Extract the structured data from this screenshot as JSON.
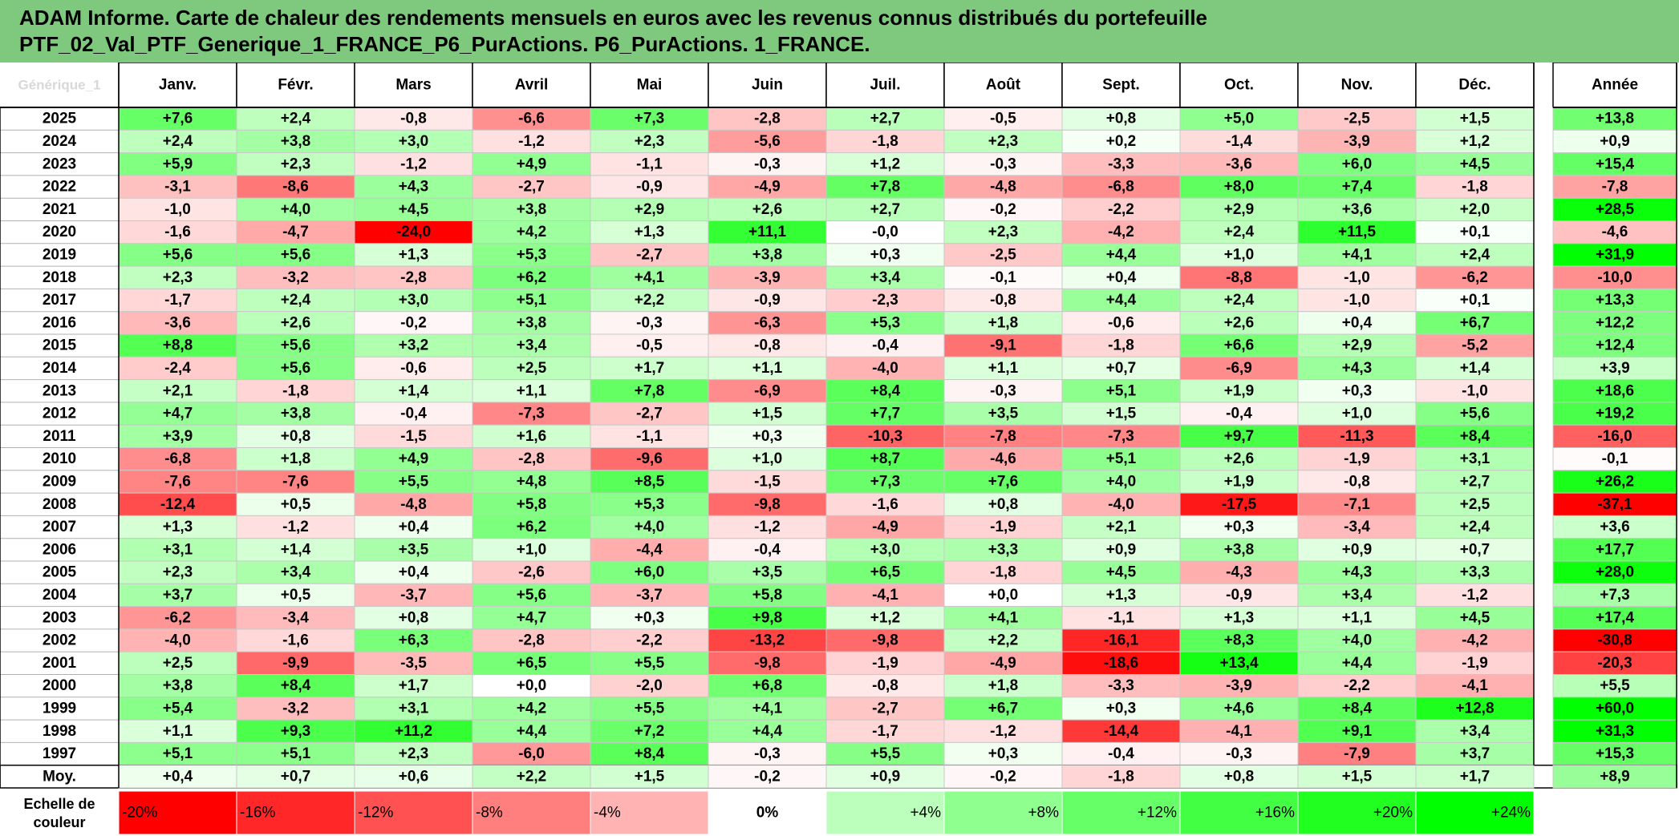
{
  "title_line1": "ADAM Informe. Carte de chaleur des rendements mensuels en euros avec les revenus connus distribués du portefeuille",
  "title_line2": "PTF_02_Val_PTF_Generique_1_FRANCE_P6_PurActions. P6_PurActions. 1_FRANCE.",
  "chart_data": {
    "type": "heatmap",
    "corner_label": "Générique_1",
    "columns": [
      "Janv.",
      "Févr.",
      "Mars",
      "Avril",
      "Mai",
      "Juin",
      "Juil.",
      "Août",
      "Sept.",
      "Oct.",
      "Nov.",
      "Déc."
    ],
    "total_column": "Année",
    "rows": [
      {
        "year": "2025",
        "values": [
          "+7,6",
          "+2,4",
          "-0,8",
          "-6,6",
          "+7,3",
          "-2,8",
          "+2,7",
          "-0,5",
          "+0,8",
          "+5,0",
          "-2,5",
          "+1,5"
        ],
        "total": "+13,8"
      },
      {
        "year": "2024",
        "values": [
          "+2,4",
          "+3,8",
          "+3,0",
          "-1,2",
          "+2,3",
          "-5,6",
          "-1,8",
          "+2,3",
          "+0,2",
          "-1,4",
          "-3,9",
          "+1,2"
        ],
        "total": "+0,9"
      },
      {
        "year": "2023",
        "values": [
          "+5,9",
          "+2,3",
          "-1,2",
          "+4,9",
          "-1,1",
          "-0,3",
          "+1,2",
          "-0,3",
          "-3,3",
          "-3,6",
          "+6,0",
          "+4,5"
        ],
        "total": "+15,4"
      },
      {
        "year": "2022",
        "values": [
          "-3,1",
          "-8,6",
          "+4,3",
          "-2,7",
          "-0,9",
          "-4,9",
          "+7,8",
          "-4,8",
          "-6,8",
          "+8,0",
          "+7,4",
          "-1,8"
        ],
        "total": "-7,8"
      },
      {
        "year": "2021",
        "values": [
          "-1,0",
          "+4,0",
          "+4,5",
          "+3,8",
          "+2,9",
          "+2,6",
          "+2,7",
          "-0,2",
          "-2,2",
          "+2,9",
          "+3,6",
          "+2,0"
        ],
        "total": "+28,5"
      },
      {
        "year": "2020",
        "values": [
          "-1,6",
          "-4,7",
          "-24,0",
          "+4,2",
          "+1,3",
          "+11,1",
          "-0,0",
          "+2,3",
          "-4,2",
          "+2,4",
          "+11,5",
          "+0,1"
        ],
        "total": "-4,6"
      },
      {
        "year": "2019",
        "values": [
          "+5,6",
          "+5,6",
          "+1,3",
          "+5,3",
          "-2,7",
          "+3,8",
          "+0,3",
          "-2,5",
          "+4,4",
          "+1,0",
          "+4,1",
          "+2,4"
        ],
        "total": "+31,9"
      },
      {
        "year": "2018",
        "values": [
          "+2,3",
          "-3,2",
          "-2,8",
          "+6,2",
          "+4,1",
          "-3,9",
          "+3,4",
          "-0,1",
          "+0,4",
          "-8,8",
          "-1,0",
          "-6,2"
        ],
        "total": "-10,0"
      },
      {
        "year": "2017",
        "values": [
          "-1,7",
          "+2,4",
          "+3,0",
          "+5,1",
          "+2,2",
          "-0,9",
          "-2,3",
          "-0,8",
          "+4,4",
          "+2,4",
          "-1,0",
          "+0,1"
        ],
        "total": "+13,3"
      },
      {
        "year": "2016",
        "values": [
          "-3,6",
          "+2,6",
          "-0,2",
          "+3,8",
          "-0,3",
          "-6,3",
          "+5,3",
          "+1,8",
          "-0,6",
          "+2,6",
          "+0,4",
          "+6,7"
        ],
        "total": "+12,2"
      },
      {
        "year": "2015",
        "values": [
          "+8,8",
          "+5,6",
          "+3,2",
          "+3,4",
          "-0,5",
          "-0,8",
          "-0,4",
          "-9,1",
          "-1,8",
          "+6,6",
          "+2,9",
          "-5,2"
        ],
        "total": "+12,4"
      },
      {
        "year": "2014",
        "values": [
          "-2,4",
          "+5,6",
          "-0,6",
          "+2,5",
          "+1,7",
          "+1,1",
          "-4,0",
          "+1,1",
          "+0,7",
          "-6,9",
          "+4,3",
          "+1,4"
        ],
        "total": "+3,9"
      },
      {
        "year": "2013",
        "values": [
          "+2,1",
          "-1,8",
          "+1,4",
          "+1,1",
          "+7,8",
          "-6,9",
          "+8,4",
          "-0,3",
          "+5,1",
          "+1,9",
          "+0,3",
          "-1,0"
        ],
        "total": "+18,6"
      },
      {
        "year": "2012",
        "values": [
          "+4,7",
          "+3,8",
          "-0,4",
          "-7,3",
          "-2,7",
          "+1,5",
          "+7,7",
          "+3,5",
          "+1,5",
          "-0,4",
          "+1,0",
          "+5,6"
        ],
        "total": "+19,2"
      },
      {
        "year": "2011",
        "values": [
          "+3,9",
          "+0,8",
          "-1,5",
          "+1,6",
          "-1,1",
          "+0,3",
          "-10,3",
          "-7,8",
          "-7,3",
          "+9,7",
          "-11,3",
          "+8,4"
        ],
        "total": "-16,0"
      },
      {
        "year": "2010",
        "values": [
          "-6,8",
          "+1,8",
          "+4,9",
          "-2,8",
          "-9,6",
          "+1,0",
          "+8,7",
          "-4,6",
          "+5,1",
          "+2,6",
          "-1,9",
          "+3,1"
        ],
        "total": "-0,1"
      },
      {
        "year": "2009",
        "values": [
          "-7,6",
          "-7,6",
          "+5,5",
          "+4,8",
          "+8,5",
          "-1,5",
          "+7,3",
          "+7,6",
          "+4,0",
          "+1,9",
          "-0,8",
          "+2,7"
        ],
        "total": "+26,2"
      },
      {
        "year": "2008",
        "values": [
          "-12,4",
          "+0,5",
          "-4,8",
          "+5,8",
          "+5,3",
          "-9,8",
          "-1,6",
          "+0,8",
          "-4,0",
          "-17,5",
          "-7,1",
          "+2,5"
        ],
        "total": "-37,1"
      },
      {
        "year": "2007",
        "values": [
          "+1,3",
          "-1,2",
          "+0,4",
          "+6,2",
          "+4,0",
          "-1,2",
          "-4,9",
          "-1,9",
          "+2,1",
          "+0,3",
          "-3,4",
          "+2,4"
        ],
        "total": "+3,6"
      },
      {
        "year": "2006",
        "values": [
          "+3,1",
          "+1,4",
          "+3,5",
          "+1,0",
          "-4,4",
          "-0,4",
          "+3,0",
          "+3,3",
          "+0,9",
          "+3,8",
          "+0,9",
          "+0,7"
        ],
        "total": "+17,7"
      },
      {
        "year": "2005",
        "values": [
          "+2,3",
          "+3,4",
          "+0,4",
          "-2,6",
          "+6,0",
          "+3,5",
          "+6,5",
          "-1,8",
          "+4,5",
          "-4,3",
          "+4,3",
          "+3,3"
        ],
        "total": "+28,0"
      },
      {
        "year": "2004",
        "values": [
          "+3,7",
          "+0,5",
          "-3,7",
          "+5,6",
          "-3,7",
          "+5,8",
          "-4,1",
          "+0,0",
          "+1,3",
          "-0,9",
          "+3,4",
          "-1,2"
        ],
        "total": "+7,3"
      },
      {
        "year": "2003",
        "values": [
          "-6,2",
          "-3,4",
          "+0,8",
          "+4,7",
          "+0,3",
          "+9,8",
          "+1,2",
          "+4,1",
          "-1,1",
          "+1,3",
          "+1,1",
          "+4,5"
        ],
        "total": "+17,4"
      },
      {
        "year": "2002",
        "values": [
          "-4,0",
          "-1,6",
          "+6,3",
          "-2,8",
          "-2,2",
          "-13,2",
          "-9,8",
          "+2,2",
          "-16,1",
          "+8,3",
          "+4,0",
          "-4,2"
        ],
        "total": "-30,8"
      },
      {
        "year": "2001",
        "values": [
          "+2,5",
          "-9,9",
          "-3,5",
          "+6,5",
          "+5,5",
          "-9,8",
          "-1,9",
          "-4,9",
          "-18,6",
          "+13,4",
          "+4,4",
          "-1,9"
        ],
        "total": "-20,3"
      },
      {
        "year": "2000",
        "values": [
          "+3,8",
          "+8,4",
          "+1,7",
          "+0,0",
          "-2,0",
          "+6,8",
          "-0,8",
          "+1,8",
          "-3,3",
          "-3,9",
          "-2,2",
          "-4,1"
        ],
        "total": "+5,5"
      },
      {
        "year": "1999",
        "values": [
          "+5,4",
          "-3,2",
          "+3,1",
          "+4,2",
          "+5,5",
          "+4,1",
          "-2,7",
          "+6,7",
          "+0,3",
          "+4,6",
          "+8,4",
          "+12,8"
        ],
        "total": "+60,0"
      },
      {
        "year": "1998",
        "values": [
          "+1,1",
          "+9,3",
          "+11,2",
          "+4,4",
          "+7,2",
          "+4,4",
          "-1,7",
          "-1,2",
          "-14,4",
          "-4,1",
          "+9,1",
          "+3,4"
        ],
        "total": "+31,3"
      },
      {
        "year": "1997",
        "values": [
          "+5,1",
          "+5,1",
          "+2,3",
          "-6,0",
          "+8,4",
          "-0,3",
          "+5,5",
          "+0,3",
          "-0,4",
          "-0,3",
          "-7,9",
          "+3,7"
        ],
        "total": "+15,3"
      }
    ],
    "average_row": {
      "label": "Moy.",
      "values": [
        "+0,4",
        "+0,7",
        "+0,6",
        "+2,2",
        "+1,5",
        "-0,2",
        "+0,9",
        "-0,2",
        "-1,8",
        "+0,8",
        "+1,5",
        "+1,7"
      ],
      "total": "+8,9"
    },
    "scale": {
      "label_line1": "Echelle de",
      "label_line2": "couleur",
      "steps": [
        {
          "label": "-20%",
          "value": -20
        },
        {
          "label": "-16%",
          "value": -16
        },
        {
          "label": "-12%",
          "value": -12
        },
        {
          "label": "-8%",
          "value": -8
        },
        {
          "label": "-4%",
          "value": -4
        },
        {
          "label": "0%",
          "value": 0
        },
        {
          "label": "+4%",
          "value": 4
        },
        {
          "label": "+8%",
          "value": 8
        },
        {
          "label": "+12%",
          "value": 12
        },
        {
          "label": "+16%",
          "value": 16
        },
        {
          "label": "+20%",
          "value": 20
        },
        {
          "label": "+24%",
          "value": 24
        }
      ]
    },
    "colors": {
      "negative_extreme": "#ff0000",
      "neutral": "#ffffff",
      "positive_extreme": "#00ff00",
      "title_background": "#7fc97f"
    }
  }
}
